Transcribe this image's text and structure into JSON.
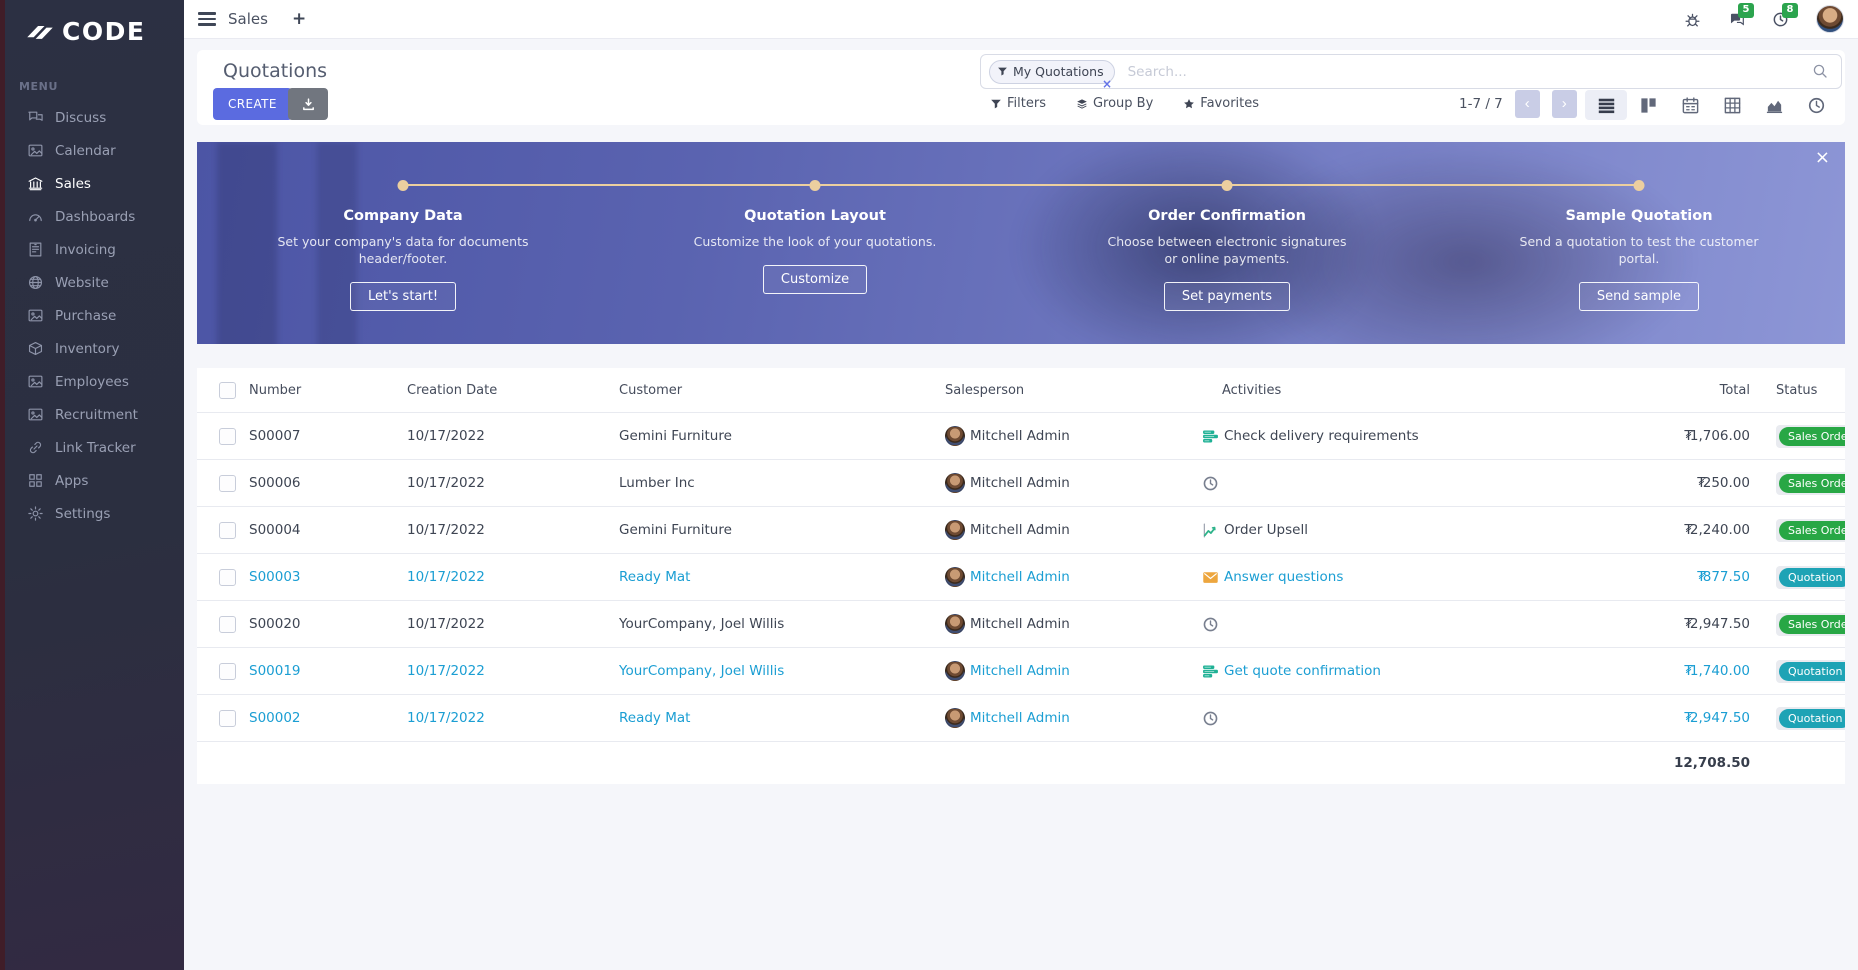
{
  "brand": {
    "name": "CODE"
  },
  "sidebar": {
    "menu_label": "MENU",
    "items": [
      {
        "label": "Discuss",
        "icon": "chat-icon",
        "active": false
      },
      {
        "label": "Calendar",
        "icon": "image-icon",
        "active": false
      },
      {
        "label": "Sales",
        "icon": "bank-icon",
        "active": true
      },
      {
        "label": "Dashboards",
        "icon": "gauge-icon",
        "active": false
      },
      {
        "label": "Invoicing",
        "icon": "invoice-icon",
        "active": false
      },
      {
        "label": "Website",
        "icon": "globe-icon",
        "active": false
      },
      {
        "label": "Purchase",
        "icon": "image-icon",
        "active": false
      },
      {
        "label": "Inventory",
        "icon": "box-icon",
        "active": false
      },
      {
        "label": "Employees",
        "icon": "image-icon",
        "active": false
      },
      {
        "label": "Recruitment",
        "icon": "image-icon",
        "active": false
      },
      {
        "label": "Link Tracker",
        "icon": "link-icon",
        "active": false
      },
      {
        "label": "Apps",
        "icon": "grid-icon",
        "active": false
      },
      {
        "label": "Settings",
        "icon": "gear-icon",
        "active": false
      }
    ]
  },
  "topbar": {
    "app_title": "Sales",
    "new_tab_label": "+",
    "messages_badge": "5",
    "activities_badge": "8"
  },
  "control_panel": {
    "title": "Quotations",
    "create_label": "CREATE",
    "search": {
      "facet": "My Quotations",
      "facet_remove": "×",
      "placeholder": "Search..."
    },
    "filters_label": "Filters",
    "groupby_label": "Group By",
    "favorites_label": "Favorites",
    "pager": {
      "display": "1-7 / 7",
      "prev": "‹",
      "next": "›"
    },
    "views": [
      "list",
      "kanban",
      "calendar",
      "pivot",
      "graph",
      "activity"
    ]
  },
  "banner": {
    "close": "×",
    "steps": [
      {
        "title": "Company Data",
        "description": "Set your company's data for documents header/footer.",
        "button": "Let's start!"
      },
      {
        "title": "Quotation Layout",
        "description": "Customize the look of your quotations.",
        "button": "Customize"
      },
      {
        "title": "Order Confirmation",
        "description": "Choose between electronic signatures or online payments.",
        "button": "Set payments"
      },
      {
        "title": "Sample Quotation",
        "description": "Send a quotation to test the customer portal.",
        "button": "Send sample"
      }
    ]
  },
  "table": {
    "columns": [
      "",
      "Number",
      "Creation Date",
      "Customer",
      "Salesperson",
      "Activities",
      "Total",
      "Status"
    ],
    "currency": "₮",
    "rows": [
      {
        "number": "S00007",
        "date": "10/17/2022",
        "customer": "Gemini Furniture",
        "salesperson": "Mitchell Admin",
        "activity": {
          "icon": "tasks-icon",
          "label": "Check delivery requirements"
        },
        "total": "1,706.00",
        "status": "Sales Order",
        "status_type": "success",
        "highlight": false
      },
      {
        "number": "S00006",
        "date": "10/17/2022",
        "customer": "Lumber Inc",
        "salesperson": "Mitchell Admin",
        "activity": {
          "icon": "clock-icon",
          "label": ""
        },
        "total": "250.00",
        "status": "Sales Order",
        "status_type": "success",
        "highlight": false
      },
      {
        "number": "S00004",
        "date": "10/17/2022",
        "customer": "Gemini Furniture",
        "salesperson": "Mitchell Admin",
        "activity": {
          "icon": "chart-icon",
          "label": "Order Upsell"
        },
        "total": "2,240.00",
        "status": "Sales Order",
        "status_type": "success",
        "highlight": false
      },
      {
        "number": "S00003",
        "date": "10/17/2022",
        "customer": "Ready Mat",
        "salesperson": "Mitchell Admin",
        "activity": {
          "icon": "envelope-icon",
          "label": "Answer questions"
        },
        "total": "877.50",
        "status": "Quotation",
        "status_type": "info",
        "highlight": true
      },
      {
        "number": "S00020",
        "date": "10/17/2022",
        "customer": "YourCompany, Joel Willis",
        "salesperson": "Mitchell Admin",
        "activity": {
          "icon": "clock-icon",
          "label": ""
        },
        "total": "2,947.50",
        "status": "Sales Order",
        "status_type": "success",
        "highlight": false
      },
      {
        "number": "S00019",
        "date": "10/17/2022",
        "customer": "YourCompany, Joel Willis",
        "salesperson": "Mitchell Admin",
        "activity": {
          "icon": "tasks-icon",
          "label": "Get quote confirmation"
        },
        "total": "1,740.00",
        "status": "Quotation Sent",
        "status_type": "info",
        "highlight": true
      },
      {
        "number": "S00002",
        "date": "10/17/2022",
        "customer": "Ready Mat",
        "salesperson": "Mitchell Admin",
        "activity": {
          "icon": "clock-icon",
          "label": ""
        },
        "total": "2,947.50",
        "status": "Quotation",
        "status_type": "info",
        "highlight": true
      }
    ],
    "footer_total": "12,708.50"
  },
  "colors": {
    "accent": "#5b6be0",
    "success": "#28a745",
    "info": "#1ea3b5",
    "highlight_text": "#1b9ed3",
    "banner_dot": "#eccf9f",
    "sidebar_bg": "#2b2f40",
    "badge_green": "#2ca44e"
  }
}
